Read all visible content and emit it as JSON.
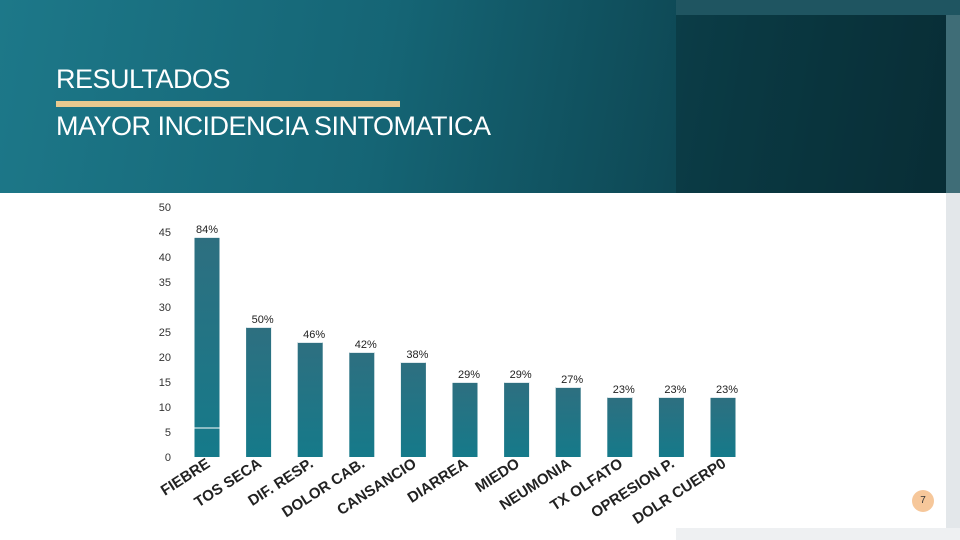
{
  "header": {
    "title": "RESULTADOS",
    "subtitle": "MAYOR INCIDENCIA SINTOMATICA"
  },
  "colors": {
    "bar_top": "#2e6f80",
    "bar_bottom": "#157a8a",
    "accent": "#e8c98f",
    "badge": "#f6c79a"
  },
  "page_number": "7",
  "chart_data": {
    "type": "bar",
    "categories": [
      "FIEBRE",
      "TOS SECA",
      "DIF. RESP.",
      "DOLOR CAB.",
      "CANSANCIO",
      "DIARREA",
      "MIEDO",
      "NEUMONIA",
      "TX OLFATO",
      "OPRESION P.",
      "DOLR CUERP0"
    ],
    "values": [
      44,
      26,
      23,
      21,
      19,
      15,
      15,
      14,
      12,
      12,
      12
    ],
    "data_labels": [
      "84%",
      "50%",
      "46%",
      "42%",
      "38%",
      "29%",
      "29%",
      "27%",
      "23%",
      "23%",
      "23%"
    ],
    "yticks": [
      "0",
      "5",
      "10",
      "15",
      "20",
      "25",
      "30",
      "35",
      "40",
      "45",
      "50"
    ],
    "ylim": [
      0,
      50
    ],
    "grid": false,
    "legend": "none"
  }
}
